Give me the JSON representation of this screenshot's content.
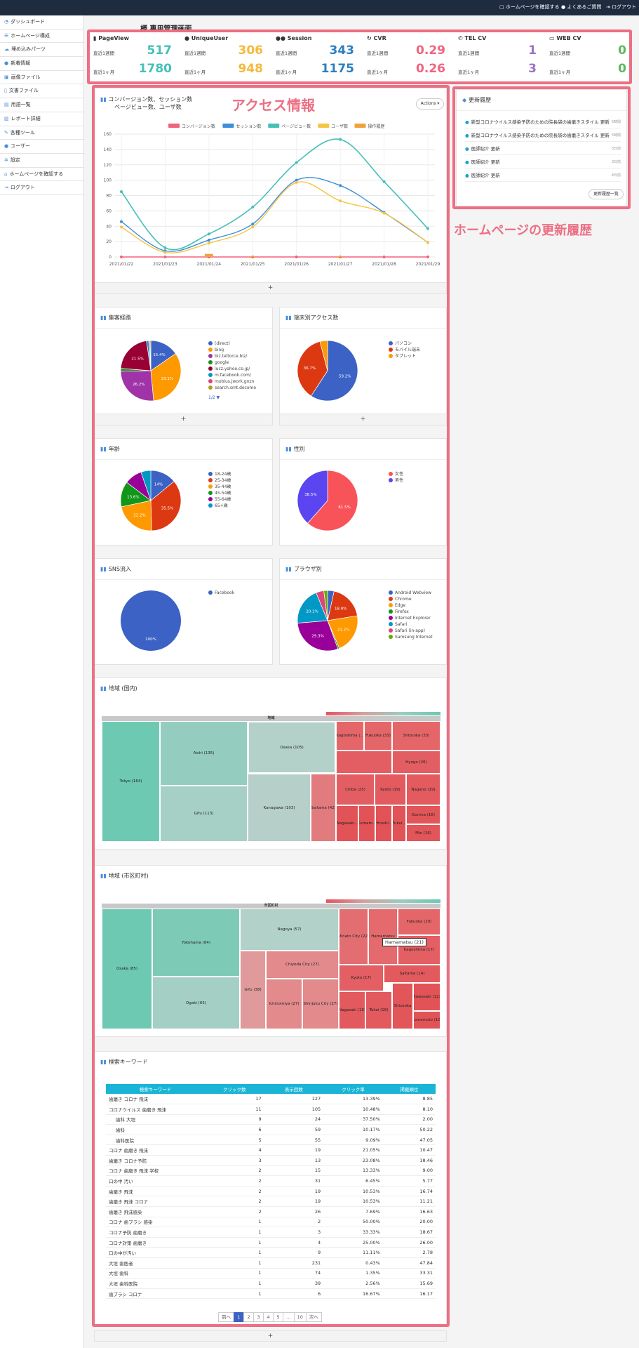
{
  "topbar": {
    "check_site": "ホームページを確認する",
    "faq": "よくあるご質問",
    "logout": "ログアウト"
  },
  "sidebar": {
    "items": [
      {
        "label": "ダッシュボード",
        "icon": "dashboard-icon"
      },
      {
        "label": "ホームページ構成",
        "icon": "list-icon"
      },
      {
        "label": "埋め込みパーツ",
        "icon": "cloud-icon"
      },
      {
        "label": "新着情報",
        "icon": "info-icon"
      },
      {
        "label": "画像ファイル",
        "icon": "image-icon"
      },
      {
        "label": "文書ファイル",
        "icon": "file-icon"
      },
      {
        "label": "用語一覧",
        "icon": "book-icon"
      },
      {
        "label": "レポート詳細",
        "icon": "chart-icon"
      },
      {
        "label": "各種ツール",
        "icon": "wrench-icon"
      },
      {
        "label": "ユーザー",
        "icon": "user-icon"
      },
      {
        "label": "設定",
        "icon": "gear-icon"
      },
      {
        "label": "ホームページを確認する",
        "icon": "home-icon"
      },
      {
        "label": "ログアウト",
        "icon": "logout-icon"
      }
    ]
  },
  "page_title": "様 専用管理画面",
  "kpi": {
    "week_label": "直近1週間",
    "month_label": "直近1ヶ月",
    "cols": [
      {
        "title": "PageView",
        "week": "517",
        "month": "1780",
        "color": "#45c0b8"
      },
      {
        "title": "UniqueUser",
        "week": "306",
        "month": "948",
        "color": "#f5b93a"
      },
      {
        "title": "Session",
        "week": "343",
        "month": "1175",
        "color": "#2d7fc0"
      },
      {
        "title": "CVR",
        "week": "0.29",
        "month": "0.26",
        "color": "#f0637e"
      },
      {
        "title": "TEL CV",
        "week": "1",
        "month": "3",
        "color": "#9b72c9"
      },
      {
        "title": "WEB CV",
        "week": "0",
        "month": "0",
        "color": "#5cb85c"
      }
    ]
  },
  "annotations": {
    "access": "アクセス情報",
    "history": "ホームページの更新履歴"
  },
  "main_chart": {
    "title_line1": "コンバージョン数、セッション数",
    "title_line2": "ページビュー数、ユーザ数",
    "actions": "Actions ▾"
  },
  "chart_data": [
    {
      "type": "line",
      "title": "コンバージョン数、セッション数 ページビュー数、ユーザ数",
      "x": [
        "2021/01/22",
        "2021/01/23",
        "2021/01/24",
        "2021/01/25",
        "2021/01/26",
        "2021/01/27",
        "2021/01/28",
        "2021/01/29"
      ],
      "ylim": [
        0,
        160
      ],
      "yticks": [
        0,
        20,
        40,
        60,
        80,
        100,
        120,
        140,
        160
      ],
      "series": [
        {
          "name": "コンバージョン数",
          "color": "#f0637e",
          "values": [
            0,
            0,
            0,
            0,
            0,
            0,
            0,
            0
          ]
        },
        {
          "name": "セッション数",
          "color": "#3b8fd9",
          "values": [
            46,
            8,
            22,
            43,
            100,
            93,
            58,
            19
          ]
        },
        {
          "name": "ページビュー数",
          "color": "#45c0b8",
          "values": [
            85,
            12,
            30,
            65,
            123,
            153,
            98,
            37
          ]
        },
        {
          "name": "ユーザ数",
          "color": "#f5c542",
          "values": [
            39,
            6,
            18,
            39,
            97,
            73,
            57,
            19
          ]
        },
        {
          "name": "操作履歴",
          "color": "#f0a23a",
          "type": "bar",
          "values": [
            0,
            0,
            4,
            1,
            0,
            1,
            0,
            0
          ]
        }
      ]
    },
    {
      "type": "pie",
      "title": "集客経路",
      "labels": [
        "(direct)",
        "bing",
        "biz.teltorce.biz/",
        "google",
        "lucz.yahoo.co.jp/",
        "m.facebook.com/",
        "mobius.jwork.gnzn",
        "search.smt.docomo"
      ],
      "values": [
        15.4,
        33.1,
        26.2,
        1.5,
        21.5,
        1.2,
        0.6,
        0.5
      ],
      "colors": [
        "#3b62c4",
        "#ff9900",
        "#a033a8",
        "#1c8d21",
        "#990033",
        "#0099c6",
        "#dd4477",
        "#b0a020"
      ],
      "pager": "1/2 ▼"
    },
    {
      "type": "pie",
      "title": "端末別アクセス数",
      "labels": [
        "パソコン",
        "モバイル端末",
        "タブレット"
      ],
      "values": [
        59.2,
        36.7,
        4.1
      ],
      "colors": [
        "#3b62c4",
        "#dc3912",
        "#ff9900"
      ]
    },
    {
      "type": "pie",
      "title": "年齢",
      "labels": [
        "18-24歳",
        "25-34歳",
        "35-44歳",
        "45-54歳",
        "55-64歳",
        "65+歳"
      ],
      "values": [
        14,
        35.5,
        22.2,
        13.6,
        9.4,
        5.3
      ],
      "colors": [
        "#3b62c4",
        "#dc3912",
        "#ff9900",
        "#109618",
        "#990099",
        "#0099c6"
      ]
    },
    {
      "type": "pie",
      "title": "性別",
      "labels": [
        "女性",
        "男性"
      ],
      "values": [
        61.5,
        38.5
      ],
      "colors": [
        "#f9535a",
        "#5b45f0"
      ]
    },
    {
      "type": "pie",
      "title": "SNS流入",
      "labels": [
        "Facebook"
      ],
      "values": [
        100
      ],
      "colors": [
        "#3b62c4"
      ]
    },
    {
      "type": "pie",
      "title": "ブラウザ別",
      "labels": [
        "Android Webview",
        "Chrome",
        "Edge",
        "Firefox",
        "Internet Explorer",
        "Safari",
        "Safari (in-app)",
        "Samsung Internet"
      ],
      "values": [
        3.5,
        18.9,
        21.2,
        0.8,
        29.3,
        20.1,
        4.2,
        2
      ],
      "colors": [
        "#3b62c4",
        "#dc3912",
        "#ff9900",
        "#109618",
        "#990099",
        "#0099c6",
        "#dd4477",
        "#66aa00"
      ]
    }
  ],
  "pie_labels": {
    "source": [
      "15.4%",
      "33.1%",
      "26.2%",
      "21.5%"
    ],
    "device": [
      "59.2%",
      "36.7%"
    ],
    "age": [
      "14%",
      "35.5%",
      "22.2%",
      "13.6%"
    ],
    "gender": [
      "61.5%",
      "38.5%"
    ],
    "sns": [
      "100%"
    ],
    "browser": [
      "18.9%",
      "21.2%",
      "29.3%",
      "20.1%"
    ]
  },
  "treemap_pref": {
    "title": "地域 (国内)",
    "header": "地域",
    "cells": [
      "Tokyo (164)",
      "Aichi (135)",
      "Gifu (113)",
      "Osaka (105)",
      "Kanagawa (103)",
      "Saitama (42)",
      "Kagoshima (...",
      "Fukuoka (33)",
      "Shizuoka (33)",
      "Hyogo (26)",
      "Chiba (25)",
      "Kyoto (19)",
      "Nagano (19)",
      "Gunma (16)",
      "Mie (16)",
      "Nagasaki...",
      "Kumam...",
      "Hiroshi...",
      "Fukui..."
    ]
  },
  "treemap_city": {
    "title": "地域 (市区町村)",
    "header": "市区町村",
    "tooltip": "Hamamatsu (21)",
    "cells": [
      "Osaka (85)",
      "Yokohama (84)",
      "Ogaki (65)",
      "Nagoya (57)",
      "Gifu (38)",
      "Chiyoda City (27)",
      "Ichinomiya (27)",
      "Shinjuku City (27)",
      "Minato City (22)",
      "Hamamatsu",
      "Fukuoka (20)",
      "Kagoshima (17)",
      "Kyoto (17)",
      "Saitama (14)",
      "Nagasaki (16)",
      "Tokai (16)",
      "Shizuoka",
      "Kawasaki (12)",
      "Kumamoto (10)"
    ]
  },
  "updates": {
    "title": "更新履歴",
    "button": "更新履歴一覧",
    "items": [
      {
        "text": "新型コロナウイルス感染予防のための院長袋の歯磨きスタイル 更新",
        "time": "5時間"
      },
      {
        "text": "新型コロナウイルス感染予防のための院長袋の歯磨きスタイル 更新",
        "time": "5時間"
      },
      {
        "text": "医師紹介 更新",
        "time": "3日前"
      },
      {
        "text": "医師紹介 更新",
        "time": "3日前"
      },
      {
        "text": "医師紹介 更新",
        "time": "4日前"
      }
    ]
  },
  "keywords": {
    "title": "検索キーワード",
    "headers": [
      "検索キーワード",
      "クリック数",
      "表示回数",
      "クリック率",
      "掲載順位"
    ],
    "rows": [
      [
        "歯磨き コロナ 飛沫",
        "17",
        "127",
        "13.39%",
        "8.85"
      ],
      [
        "コロナウイルス 歯磨き 飛沫",
        "11",
        "105",
        "10.48%",
        "8.10"
      ],
      [
        "歯科 大垣",
        "9",
        "24",
        "37.50%",
        "2.00"
      ],
      [
        "歯科",
        "6",
        "59",
        "10.17%",
        "50.22"
      ],
      [
        "歯科医院",
        "5",
        "55",
        "9.09%",
        "47.05"
      ],
      [
        "コロナ 歯磨き 飛沫",
        "4",
        "19",
        "21.05%",
        "10.47"
      ],
      [
        "歯磨き コロナ予防",
        "3",
        "13",
        "23.08%",
        "18.46"
      ],
      [
        "コロナ 歯磨き 飛沫 学校",
        "2",
        "15",
        "13.33%",
        "9.00"
      ],
      [
        "口の中 汚い",
        "2",
        "31",
        "6.45%",
        "5.77"
      ],
      [
        "歯磨き 飛沫",
        "2",
        "19",
        "10.53%",
        "16.74"
      ],
      [
        "歯磨き 飛沫 コロナ",
        "2",
        "19",
        "10.53%",
        "11.21"
      ],
      [
        "歯磨き 飛沫感染",
        "2",
        "26",
        "7.69%",
        "16.63"
      ],
      [
        "コロナ 歯ブラシ 感染",
        "1",
        "2",
        "50.00%",
        "20.00"
      ],
      [
        "コロナ予防 歯磨き",
        "1",
        "3",
        "33.33%",
        "18.67"
      ],
      [
        "コロナ対策 歯磨き",
        "1",
        "4",
        "25.00%",
        "26.00"
      ],
      [
        "口の中が汚い",
        "1",
        "9",
        "11.11%",
        "2.78"
      ],
      [
        "大垣 歯医者",
        "1",
        "231",
        "0.43%",
        "47.84"
      ],
      [
        "大垣 歯科",
        "1",
        "74",
        "1.35%",
        "33.31"
      ],
      [
        "大垣 歯科医院",
        "1",
        "39",
        "2.56%",
        "15.69"
      ],
      [
        "歯ブラシ コロナ",
        "1",
        "6",
        "16.67%",
        "16.17"
      ]
    ],
    "pagination": [
      "前へ",
      "1",
      "2",
      "3",
      "4",
      "5",
      "…",
      "10",
      "次へ"
    ]
  },
  "expand": "+"
}
